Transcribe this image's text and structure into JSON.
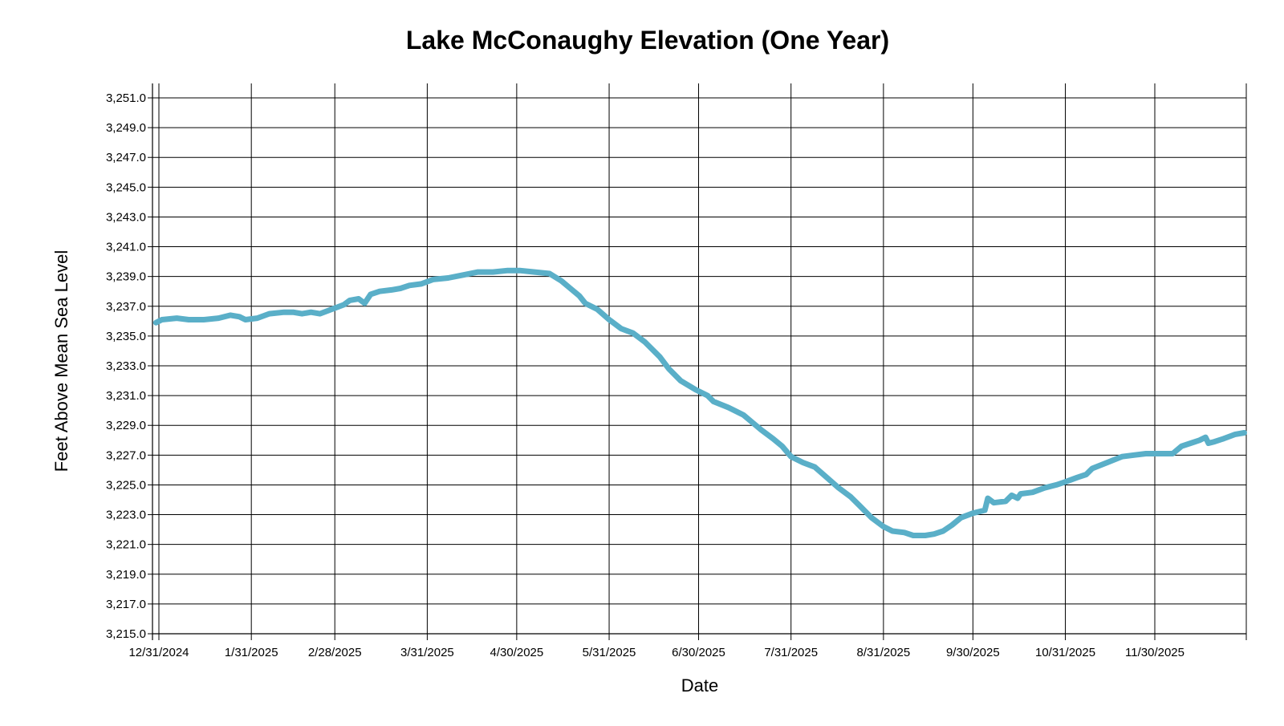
{
  "chart_data": {
    "type": "line",
    "title": "Lake McConaughy Elevation (One Year)",
    "xlabel": "Date",
    "ylabel": "Feet Above Mean Sea Level",
    "x_range": [
      "2024-12-30",
      "2025-12-30"
    ],
    "ylim": [
      3215.0,
      3252.0
    ],
    "x_ticks": [
      {
        "date": "2024-12-31",
        "label": "12/31/2024"
      },
      {
        "date": "2025-01-31",
        "label": "1/31/2025"
      },
      {
        "date": "2025-02-28",
        "label": "2/28/2025"
      },
      {
        "date": "2025-03-31",
        "label": "3/31/2025"
      },
      {
        "date": "2025-04-30",
        "label": "4/30/2025"
      },
      {
        "date": "2025-05-31",
        "label": "5/31/2025"
      },
      {
        "date": "2025-06-30",
        "label": "6/30/2025"
      },
      {
        "date": "2025-07-31",
        "label": "7/31/2025"
      },
      {
        "date": "2025-08-31",
        "label": "8/31/2025"
      },
      {
        "date": "2025-09-30",
        "label": "9/30/2025"
      },
      {
        "date": "2025-10-31",
        "label": "10/31/2025"
      },
      {
        "date": "2025-11-30",
        "label": "11/30/2025"
      }
    ],
    "y_ticks": [
      {
        "value": 3251.0,
        "label": "3,251.0"
      },
      {
        "value": 3249.0,
        "label": "3,249.0"
      },
      {
        "value": 3247.0,
        "label": "3,247.0"
      },
      {
        "value": 3245.0,
        "label": "3,245.0"
      },
      {
        "value": 3243.0,
        "label": "3,243.0"
      },
      {
        "value": 3241.0,
        "label": "3,241.0"
      },
      {
        "value": 3239.0,
        "label": "3,239.0"
      },
      {
        "value": 3237.0,
        "label": "3,237.0"
      },
      {
        "value": 3235.0,
        "label": "3,235.0"
      },
      {
        "value": 3233.0,
        "label": "3,233.0"
      },
      {
        "value": 3231.0,
        "label": "3,231.0"
      },
      {
        "value": 3229.0,
        "label": "3,229.0"
      },
      {
        "value": 3227.0,
        "label": "3,227.0"
      },
      {
        "value": 3225.0,
        "label": "3,225.0"
      },
      {
        "value": 3223.0,
        "label": "3,223.0"
      },
      {
        "value": 3221.0,
        "label": "3,221.0"
      },
      {
        "value": 3219.0,
        "label": "3,219.0"
      },
      {
        "value": 3217.0,
        "label": "3,217.0"
      },
      {
        "value": 3215.0,
        "label": "3,215.0"
      }
    ],
    "grid": true,
    "legend": "none",
    "series": [
      {
        "color": "#5aafc8",
        "points": [
          {
            "x": "2024-12-30",
            "y": 3235.9
          },
          {
            "x": "2025-01-01",
            "y": 3236.1
          },
          {
            "x": "2025-01-06",
            "y": 3236.2
          },
          {
            "x": "2025-01-10",
            "y": 3236.1
          },
          {
            "x": "2025-01-15",
            "y": 3236.1
          },
          {
            "x": "2025-01-20",
            "y": 3236.2
          },
          {
            "x": "2025-01-24",
            "y": 3236.4
          },
          {
            "x": "2025-01-27",
            "y": 3236.3
          },
          {
            "x": "2025-01-29",
            "y": 3236.1
          },
          {
            "x": "2025-02-02",
            "y": 3236.2
          },
          {
            "x": "2025-02-06",
            "y": 3236.5
          },
          {
            "x": "2025-02-11",
            "y": 3236.6
          },
          {
            "x": "2025-02-14",
            "y": 3236.6
          },
          {
            "x": "2025-02-17",
            "y": 3236.5
          },
          {
            "x": "2025-02-20",
            "y": 3236.6
          },
          {
            "x": "2025-02-23",
            "y": 3236.5
          },
          {
            "x": "2025-02-27",
            "y": 3236.8
          },
          {
            "x": "2025-03-03",
            "y": 3237.1
          },
          {
            "x": "2025-03-05",
            "y": 3237.4
          },
          {
            "x": "2025-03-08",
            "y": 3237.5
          },
          {
            "x": "2025-03-10",
            "y": 3237.2
          },
          {
            "x": "2025-03-12",
            "y": 3237.8
          },
          {
            "x": "2025-03-15",
            "y": 3238.0
          },
          {
            "x": "2025-03-19",
            "y": 3238.1
          },
          {
            "x": "2025-03-22",
            "y": 3238.2
          },
          {
            "x": "2025-03-25",
            "y": 3238.4
          },
          {
            "x": "2025-03-29",
            "y": 3238.5
          },
          {
            "x": "2025-04-02",
            "y": 3238.8
          },
          {
            "x": "2025-04-07",
            "y": 3238.9
          },
          {
            "x": "2025-04-12",
            "y": 3239.1
          },
          {
            "x": "2025-04-17",
            "y": 3239.3
          },
          {
            "x": "2025-04-22",
            "y": 3239.3
          },
          {
            "x": "2025-04-27",
            "y": 3239.4
          },
          {
            "x": "2025-05-01",
            "y": 3239.4
          },
          {
            "x": "2025-05-06",
            "y": 3239.3
          },
          {
            "x": "2025-05-11",
            "y": 3239.2
          },
          {
            "x": "2025-05-15",
            "y": 3238.7
          },
          {
            "x": "2025-05-18",
            "y": 3238.2
          },
          {
            "x": "2025-05-21",
            "y": 3237.7
          },
          {
            "x": "2025-05-23",
            "y": 3237.2
          },
          {
            "x": "2025-05-27",
            "y": 3236.8
          },
          {
            "x": "2025-05-31",
            "y": 3236.1
          },
          {
            "x": "2025-06-04",
            "y": 3235.5
          },
          {
            "x": "2025-06-08",
            "y": 3235.2
          },
          {
            "x": "2025-06-12",
            "y": 3234.6
          },
          {
            "x": "2025-06-17",
            "y": 3233.6
          },
          {
            "x": "2025-06-20",
            "y": 3232.8
          },
          {
            "x": "2025-06-24",
            "y": 3232.0
          },
          {
            "x": "2025-06-29",
            "y": 3231.4
          },
          {
            "x": "2025-07-03",
            "y": 3231.0
          },
          {
            "x": "2025-07-05",
            "y": 3230.6
          },
          {
            "x": "2025-07-10",
            "y": 3230.2
          },
          {
            "x": "2025-07-15",
            "y": 3229.7
          },
          {
            "x": "2025-07-18",
            "y": 3229.2
          },
          {
            "x": "2025-07-21",
            "y": 3228.7
          },
          {
            "x": "2025-07-25",
            "y": 3228.1
          },
          {
            "x": "2025-07-28",
            "y": 3227.6
          },
          {
            "x": "2025-07-31",
            "y": 3226.9
          },
          {
            "x": "2025-08-04",
            "y": 3226.5
          },
          {
            "x": "2025-08-08",
            "y": 3226.2
          },
          {
            "x": "2025-08-12",
            "y": 3225.5
          },
          {
            "x": "2025-08-16",
            "y": 3224.8
          },
          {
            "x": "2025-08-20",
            "y": 3224.2
          },
          {
            "x": "2025-08-23",
            "y": 3223.6
          },
          {
            "x": "2025-08-27",
            "y": 3222.8
          },
          {
            "x": "2025-08-31",
            "y": 3222.2
          },
          {
            "x": "2025-09-03",
            "y": 3221.9
          },
          {
            "x": "2025-09-07",
            "y": 3221.8
          },
          {
            "x": "2025-09-10",
            "y": 3221.6
          },
          {
            "x": "2025-09-14",
            "y": 3221.6
          },
          {
            "x": "2025-09-17",
            "y": 3221.7
          },
          {
            "x": "2025-09-20",
            "y": 3221.9
          },
          {
            "x": "2025-09-23",
            "y": 3222.3
          },
          {
            "x": "2025-09-26",
            "y": 3222.8
          },
          {
            "x": "2025-09-30",
            "y": 3223.1
          },
          {
            "x": "2025-10-04",
            "y": 3223.3
          },
          {
            "x": "2025-10-05",
            "y": 3224.1
          },
          {
            "x": "2025-10-07",
            "y": 3223.8
          },
          {
            "x": "2025-10-11",
            "y": 3223.9
          },
          {
            "x": "2025-10-13",
            "y": 3224.3
          },
          {
            "x": "2025-10-15",
            "y": 3224.1
          },
          {
            "x": "2025-10-16",
            "y": 3224.4
          },
          {
            "x": "2025-10-20",
            "y": 3224.5
          },
          {
            "x": "2025-10-24",
            "y": 3224.8
          },
          {
            "x": "2025-10-28",
            "y": 3225.0
          },
          {
            "x": "2025-10-31",
            "y": 3225.2
          },
          {
            "x": "2025-11-04",
            "y": 3225.5
          },
          {
            "x": "2025-11-07",
            "y": 3225.7
          },
          {
            "x": "2025-11-09",
            "y": 3226.1
          },
          {
            "x": "2025-11-14",
            "y": 3226.5
          },
          {
            "x": "2025-11-19",
            "y": 3226.9
          },
          {
            "x": "2025-11-23",
            "y": 3227.0
          },
          {
            "x": "2025-11-27",
            "y": 3227.1
          },
          {
            "x": "2025-12-01",
            "y": 3227.1
          },
          {
            "x": "2025-12-06",
            "y": 3227.1
          },
          {
            "x": "2025-12-09",
            "y": 3227.6
          },
          {
            "x": "2025-12-12",
            "y": 3227.8
          },
          {
            "x": "2025-12-15",
            "y": 3228.0
          },
          {
            "x": "2025-12-17",
            "y": 3228.2
          },
          {
            "x": "2025-12-18",
            "y": 3227.8
          },
          {
            "x": "2025-12-20",
            "y": 3227.9
          },
          {
            "x": "2025-12-23",
            "y": 3228.1
          },
          {
            "x": "2025-12-27",
            "y": 3228.4
          },
          {
            "x": "2025-12-30",
            "y": 3228.5
          }
        ]
      }
    ]
  }
}
